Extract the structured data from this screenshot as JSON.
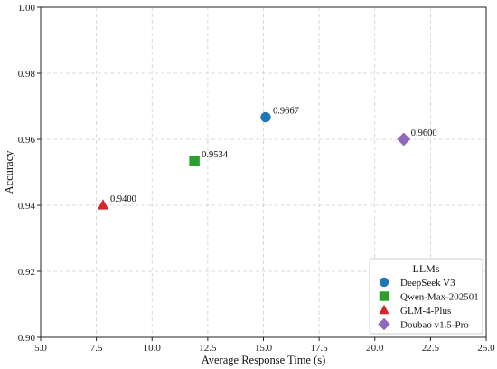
{
  "chart_data": {
    "type": "scatter",
    "xlabel": "Average Response Time (s)",
    "ylabel": "Accuracy",
    "xlim": [
      5.0,
      25.0
    ],
    "ylim": [
      0.9,
      1.0
    ],
    "xticks": [
      "5.0",
      "7.5",
      "10.0",
      "12.5",
      "15.0",
      "17.5",
      "20.0",
      "22.5",
      "25.0"
    ],
    "yticks": [
      "0.90",
      "0.92",
      "0.94",
      "0.96",
      "0.98",
      "1.00"
    ],
    "grid": true,
    "legend": {
      "title": "LLMs",
      "placement": "bottom-right"
    },
    "series": [
      {
        "name": "DeepSeek V3",
        "x": 15.1,
        "y": 0.9667,
        "label": "0.9667",
        "marker": "circle",
        "color": "#1f77b4"
      },
      {
        "name": "Qwen-Max-202501",
        "x": 11.9,
        "y": 0.9534,
        "label": "0.9534",
        "marker": "square",
        "color": "#2ca02c"
      },
      {
        "name": "GLM-4-Plus",
        "x": 7.8,
        "y": 0.94,
        "label": "0.9400",
        "marker": "triangle",
        "color": "#d62728"
      },
      {
        "name": "Doubao v1.5-Pro",
        "x": 21.3,
        "y": 0.96,
        "label": "0.9600",
        "marker": "diamond",
        "color": "#9467bd"
      }
    ]
  }
}
